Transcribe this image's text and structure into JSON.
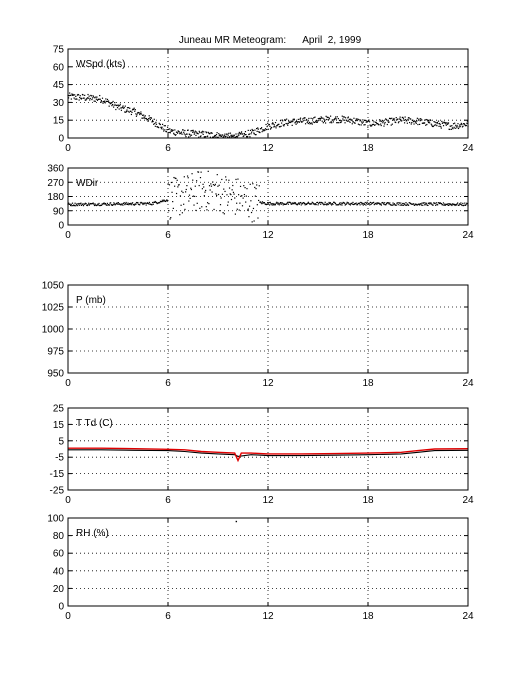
{
  "title": "Juneau MR Meteogram:      April  2, 1999",
  "colors": {
    "frame": "#000000",
    "grid": "#000000",
    "dots": "#000000",
    "temp_line": "#000000",
    "dewpoint_line": "#e00000"
  },
  "chart_data": [
    {
      "id": "wspd",
      "type": "scatter",
      "label": "WSpd (kts)",
      "xlim": [
        0,
        24
      ],
      "ylim": [
        0,
        75
      ],
      "xticks": [
        0,
        6,
        12,
        18,
        24
      ],
      "yticks": [
        0,
        15,
        30,
        45,
        60,
        75
      ],
      "grid": true,
      "profile": [
        [
          0,
          35
        ],
        [
          1,
          34
        ],
        [
          2,
          33
        ],
        [
          3,
          26
        ],
        [
          4,
          22
        ],
        [
          5,
          15
        ],
        [
          6,
          6
        ],
        [
          7,
          4
        ],
        [
          8,
          3
        ],
        [
          9,
          2
        ],
        [
          10,
          1
        ],
        [
          11,
          4
        ],
        [
          12,
          10
        ],
        [
          13,
          13
        ],
        [
          14,
          14
        ],
        [
          15,
          15
        ],
        [
          16,
          16
        ],
        [
          17,
          15
        ],
        [
          18,
          12
        ],
        [
          19,
          13
        ],
        [
          20,
          15
        ],
        [
          21,
          14
        ],
        [
          22,
          12
        ],
        [
          23,
          10
        ],
        [
          24,
          12
        ]
      ]
    },
    {
      "id": "wdir",
      "type": "scatter",
      "label": "WDir",
      "xlim": [
        0,
        24
      ],
      "ylim": [
        0,
        360
      ],
      "xticks": [
        0,
        6,
        12,
        18,
        24
      ],
      "yticks": [
        0,
        90,
        180,
        270,
        360
      ],
      "grid": true,
      "profile": [
        [
          0,
          130
        ],
        [
          5,
          135
        ],
        [
          6,
          160
        ],
        [
          7,
          190
        ],
        [
          8,
          220
        ],
        [
          9,
          210
        ],
        [
          10,
          180
        ],
        [
          11,
          150
        ],
        [
          12,
          135
        ],
        [
          18,
          135
        ],
        [
          24,
          130
        ]
      ]
    },
    {
      "id": "pressure",
      "type": "line",
      "label": "P (mb)",
      "xlim": [
        0,
        24
      ],
      "ylim": [
        950,
        1050
      ],
      "xticks": [
        0,
        6,
        12,
        18,
        24
      ],
      "yticks": [
        950,
        975,
        1000,
        1025,
        1050
      ],
      "grid": true,
      "series": []
    },
    {
      "id": "temp",
      "type": "line",
      "label": "T Td (C)",
      "xlim": [
        0,
        24
      ],
      "ylim": [
        -25,
        25
      ],
      "xticks": [
        0,
        6,
        12,
        18,
        24
      ],
      "yticks": [
        -25,
        -15,
        -5,
        5,
        15,
        25
      ],
      "grid": true,
      "series": [
        {
          "color_key": "temp_line",
          "x": [
            0,
            2,
            4,
            6,
            7,
            8,
            9,
            10,
            10.2,
            11,
            12,
            14,
            16,
            18,
            20,
            21,
            22,
            24
          ],
          "y": [
            -0.5,
            -0.5,
            -0.8,
            -1.0,
            -1.5,
            -2.5,
            -3.0,
            -3.5,
            -4.5,
            -3.5,
            -4.0,
            -4.0,
            -3.8,
            -3.5,
            -3.0,
            -2.0,
            -1.0,
            -0.8
          ]
        },
        {
          "color_key": "dewpoint_line",
          "x": [
            0,
            2,
            4,
            6,
            7,
            8,
            9,
            10,
            10.2,
            10.4,
            11,
            12,
            14,
            16,
            18,
            20,
            21,
            22,
            24
          ],
          "y": [
            0.5,
            0.5,
            0.2,
            -0.2,
            -0.5,
            -1.5,
            -2.0,
            -2.5,
            -7.0,
            -2.5,
            -2.5,
            -3.0,
            -3.0,
            -2.8,
            -2.5,
            -2.0,
            -1.0,
            0.0,
            0.2
          ]
        }
      ]
    },
    {
      "id": "rh",
      "type": "scatter",
      "label": "RH (%)",
      "xlim": [
        0,
        24
      ],
      "ylim": [
        0,
        100
      ],
      "xticks": [
        0,
        6,
        12,
        18,
        24
      ],
      "yticks": [
        0,
        20,
        40,
        60,
        80,
        100
      ],
      "grid": true,
      "points": [
        [
          10.1,
          96
        ]
      ]
    }
  ]
}
